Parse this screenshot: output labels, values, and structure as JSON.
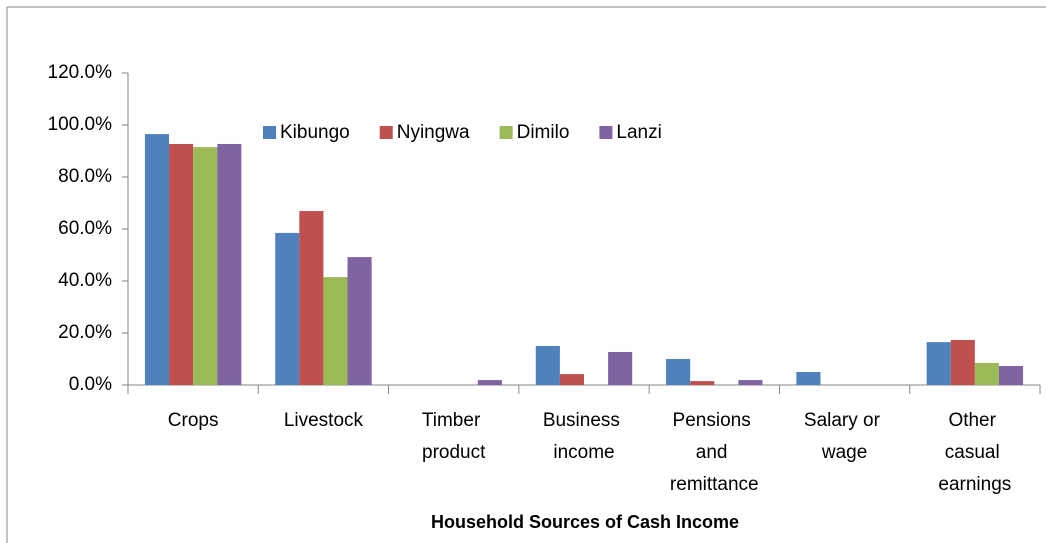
{
  "chart_data": {
    "type": "bar",
    "x_label": "Household Sources of Cash Income",
    "categories": [
      "Crops",
      "Livestock",
      "Timber product",
      "Business income",
      "Pensions and remittance",
      "Salary or wage",
      "Other casual earnings"
    ],
    "series": [
      {
        "name": "Kibungo",
        "color": "#4f81bd",
        "values": [
          96.5,
          58.5,
          0,
          15,
          10,
          5,
          16.5
        ]
      },
      {
        "name": "Nyingwa",
        "color": "#c0504d",
        "values": [
          92.7,
          66.9,
          0,
          4.2,
          1.5,
          0,
          17.3
        ]
      },
      {
        "name": "Dimilo",
        "color": "#9bbb59",
        "values": [
          91.5,
          41.5,
          0,
          0,
          0,
          0,
          8.5
        ]
      },
      {
        "name": "Lanzi",
        "color": "#8064a2",
        "values": [
          92.7,
          49.2,
          1.9,
          12.7,
          1.9,
          0,
          7.3
        ]
      }
    ],
    "ylim": [
      0,
      120
    ],
    "yticks": [
      {
        "value": 0,
        "label": "0.0%"
      },
      {
        "value": 20,
        "label": "20.0%"
      },
      {
        "value": 40,
        "label": "40.0%"
      },
      {
        "value": 60,
        "label": "60.0%"
      },
      {
        "value": 80,
        "label": "80.0%"
      },
      {
        "value": 100,
        "label": "100.0%"
      },
      {
        "value": 120,
        "label": "120.0%"
      }
    ],
    "grid": false,
    "legend": "top"
  }
}
